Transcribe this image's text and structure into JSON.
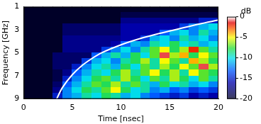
{
  "chart_data": {
    "type": "heatmap",
    "x_label": "Time [nsec]",
    "y_label": "Frequency [GHz]",
    "xlim": [
      0,
      20
    ],
    "xticks": [
      0,
      5,
      10,
      15,
      20
    ],
    "ylim": [
      9,
      1
    ],
    "yticks": [
      1,
      3,
      5,
      7,
      9
    ],
    "grid": false,
    "tick_labels": true,
    "cells": {
      "x": [
        0.5,
        1.5,
        2.5,
        3.5,
        4.5,
        5.5,
        6.5,
        7.5,
        8.5,
        9.5,
        10.5,
        11.5,
        12.5,
        13.5,
        14.5,
        15.5,
        16.5,
        17.5,
        18.5,
        19.5
      ],
      "y": [
        1.25,
        1.75,
        2.25,
        2.75,
        3.25,
        3.75,
        4.25,
        4.75,
        5.25,
        5.75,
        6.25,
        6.75,
        7.25,
        7.75,
        8.25,
        8.75
      ],
      "z": [
        [
          -20,
          -20,
          -20,
          -20,
          -20,
          -20,
          -20,
          -20,
          -20,
          -20,
          -20,
          -20,
          -20,
          -20,
          -20,
          -20,
          -20,
          -20,
          -20,
          -20
        ],
        [
          -20,
          -20,
          -20,
          -20,
          -20,
          -20,
          -20,
          -20,
          -20,
          -20,
          -19,
          -19,
          -19,
          -19,
          -19,
          -19,
          -19,
          -19,
          -19,
          -19
        ],
        [
          -20,
          -20,
          -20,
          -20,
          -20,
          -20,
          -20,
          -20,
          -20,
          -20,
          -17,
          -17,
          -17,
          -17,
          -17,
          -17,
          -17,
          -17,
          -15,
          -15
        ],
        [
          -20,
          -20,
          -20,
          -20,
          -18,
          -18,
          -18,
          -18,
          -18,
          -18,
          -16,
          -16,
          -16,
          -16,
          -16,
          -16,
          -14,
          -12,
          -11,
          -10
        ],
        [
          -20,
          -20,
          -20,
          -20,
          -18,
          -18,
          -18,
          -18,
          -18,
          -18,
          -16,
          -16,
          -16,
          -16,
          -13,
          -11,
          -10,
          -12,
          -9,
          -11
        ],
        [
          -20,
          -20,
          -20,
          -20,
          -17,
          -17,
          -17,
          -17,
          -17,
          -17,
          -16,
          -16,
          -14,
          -11,
          -10,
          -12,
          -9,
          -11,
          -10,
          -12
        ],
        [
          -20,
          -20,
          -20,
          -20,
          -17,
          -17,
          -17,
          -17,
          -17,
          -16,
          -13,
          -11,
          -12,
          -9,
          -10,
          -8,
          -10,
          -9,
          -11,
          -10
        ],
        [
          -20,
          -20,
          -20,
          -20,
          -17,
          -17,
          -17,
          -17,
          -14,
          -12,
          -10,
          -12,
          -9,
          -7,
          -5,
          -8,
          -6,
          -2,
          -7,
          -9
        ],
        [
          -20,
          -20,
          -20,
          -18,
          -18,
          -18,
          -18,
          -13,
          -11,
          -9,
          -11,
          -8,
          -10,
          -7,
          -1,
          -6,
          -4,
          -8,
          -5,
          -7
        ],
        [
          -20,
          -20,
          -20,
          -18,
          -18,
          -18,
          -14,
          -11,
          -10,
          -12,
          -9,
          -8,
          -6,
          -9,
          -5,
          -7,
          -9,
          -4,
          -6,
          -8
        ],
        [
          -20,
          -20,
          -20,
          -18,
          -18,
          -15,
          -12,
          -10,
          -9,
          -11,
          -8,
          -10,
          -7,
          -9,
          -6,
          -8,
          -5,
          -7,
          -1,
          -6
        ],
        [
          -20,
          -20,
          -20,
          -19,
          -17,
          -13,
          -11,
          -9,
          -10,
          -8,
          -6,
          -9,
          -7,
          -5,
          -8,
          -6,
          -9,
          -5,
          -7,
          -8
        ],
        [
          -20,
          -20,
          -20,
          -19,
          -15,
          -12,
          -10,
          -8,
          -7,
          -9,
          -6,
          -8,
          -10,
          -7,
          -9,
          -6,
          -8,
          -10,
          -7,
          -9
        ],
        [
          -20,
          -20,
          -20,
          -18,
          -13,
          -11,
          -9,
          -7,
          -8,
          -6,
          -9,
          -7,
          -9,
          -11,
          -8,
          -10,
          -9,
          -11,
          -10,
          -12
        ],
        [
          -20,
          -20,
          -20,
          -17,
          -12,
          -10,
          -8,
          -9,
          -7,
          -5,
          -8,
          -10,
          -9,
          -12,
          -11,
          -13,
          -12,
          -14,
          -13,
          -14
        ],
        [
          -20,
          -20,
          -20,
          -15,
          -12,
          -11,
          -9,
          -10,
          -8,
          -9,
          -11,
          -10,
          -12,
          -13,
          -14,
          -15,
          -14,
          -16,
          -15,
          -16
        ]
      ]
    },
    "colorbar": {
      "label": "dB",
      "range": [
        -20,
        0
      ],
      "ticks": [
        0,
        -5,
        -10,
        -15,
        -20
      ]
    },
    "series": [
      {
        "type": "line",
        "color": "#ffffff",
        "x": [
          3.4,
          4,
          5,
          6,
          7,
          8,
          10,
          12,
          14,
          16,
          18,
          20
        ],
        "values": [
          9,
          8,
          6.9,
          6.1,
          5.5,
          5.0,
          4.3,
          3.75,
          3.3,
          2.9,
          2.5,
          2.15
        ]
      }
    ]
  }
}
